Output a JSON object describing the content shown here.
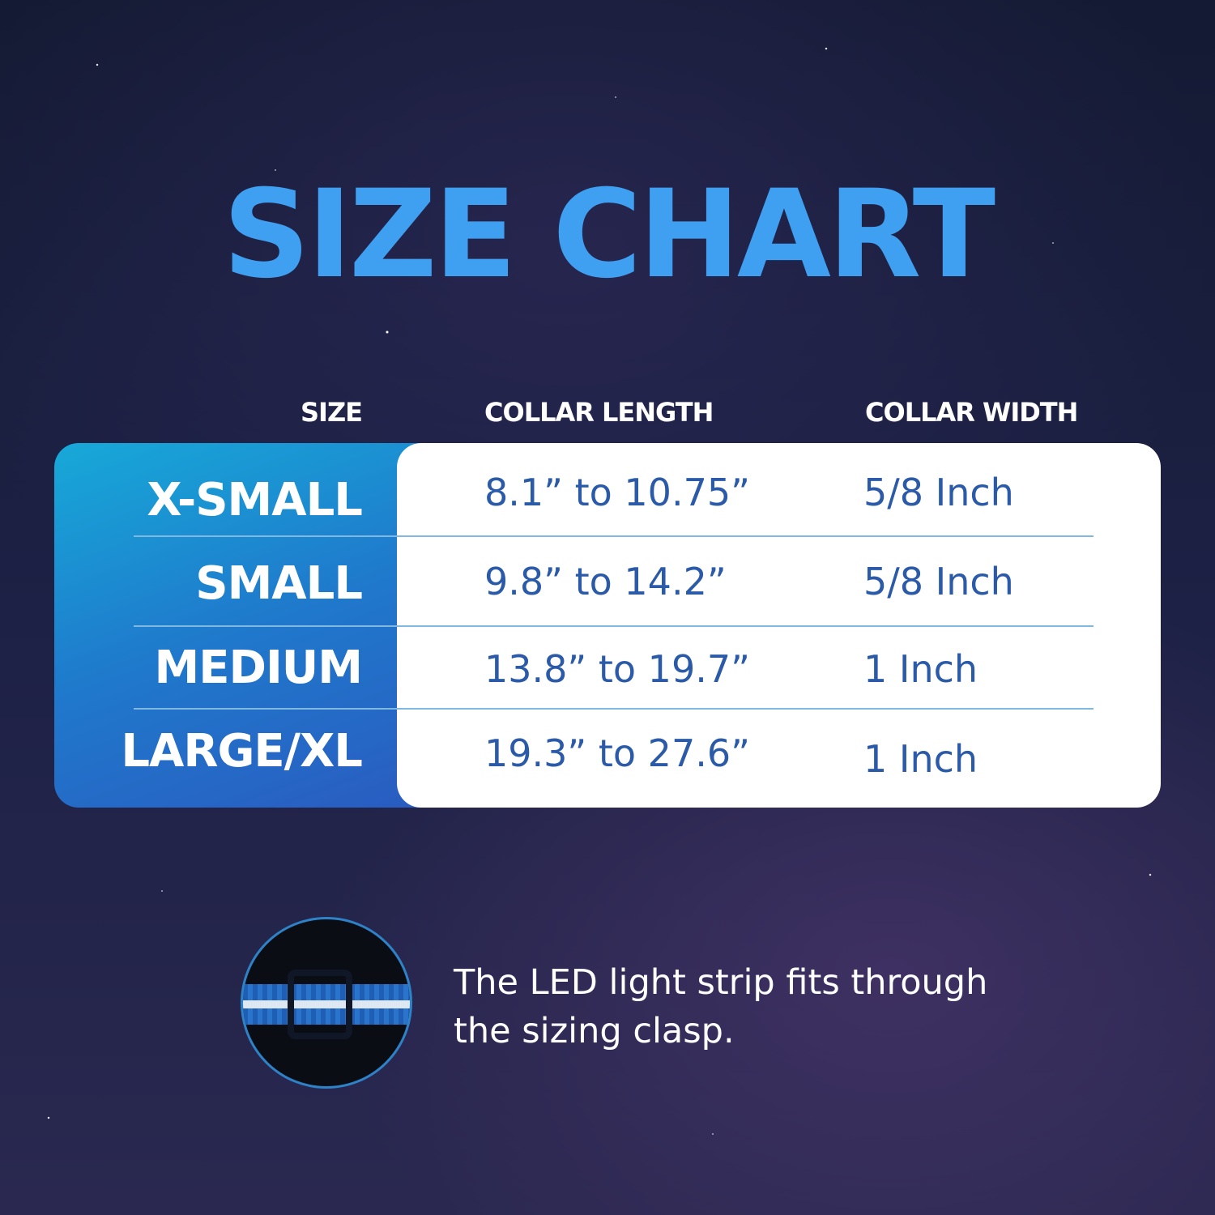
{
  "title": "SIZE CHART",
  "table": {
    "headers": [
      "SIZE",
      "COLLAR LENGTH",
      "COLLAR WIDTH"
    ],
    "rows": [
      [
        "X-SMALL",
        "8.1” to 10.75”",
        "5/8 Inch"
      ],
      [
        "SMALL",
        "9.8” to 14.2”",
        "5/8 Inch"
      ],
      [
        "MEDIUM",
        "13.8” to 19.7”",
        "1 Inch"
      ],
      [
        "LARGE/XL",
        "19.3” to 27.6”",
        "1 Inch"
      ]
    ]
  },
  "caption": "The LED light strip fits through the sizing clasp."
}
